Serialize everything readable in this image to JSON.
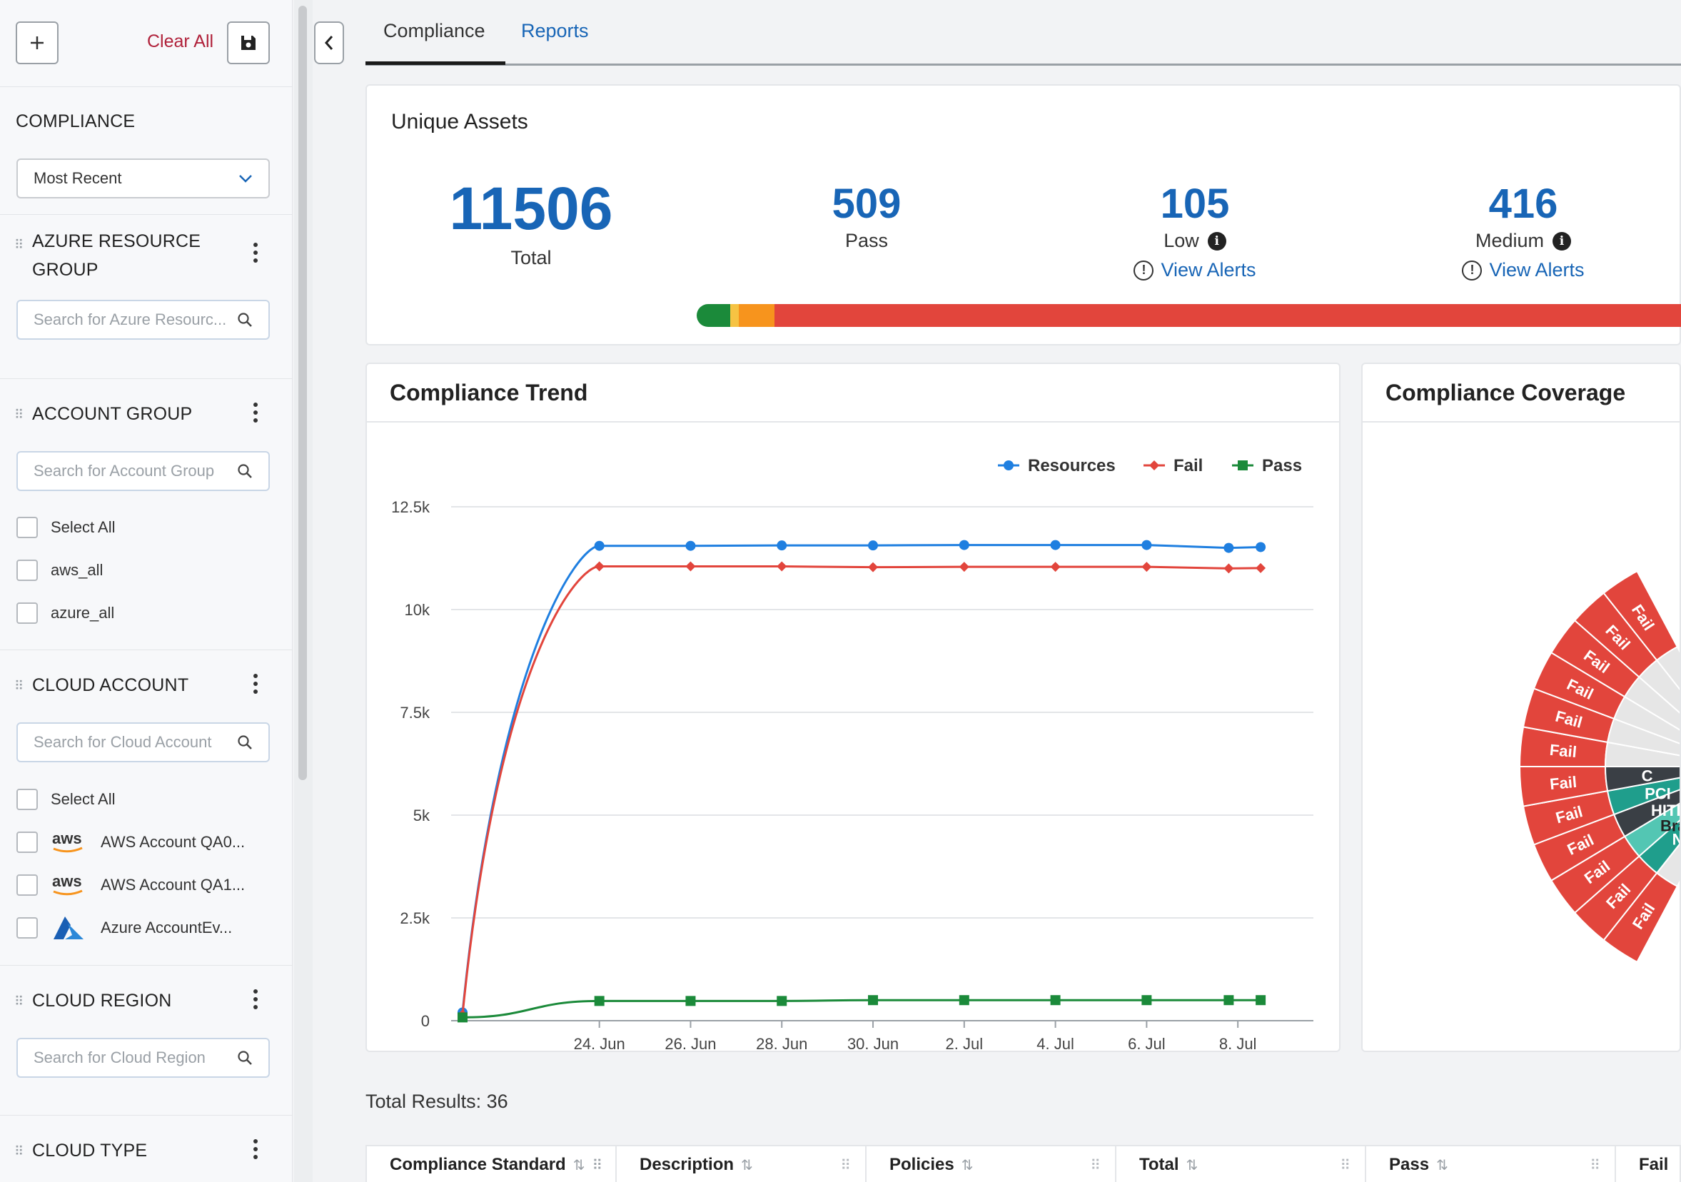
{
  "sidebar": {
    "clear_all": "Clear All",
    "compliance": {
      "title": "COMPLIANCE",
      "selected": "Most Recent"
    },
    "azure_resource_group": {
      "title_line1": "AZURE RESOURCE",
      "title_line2": "GROUP",
      "placeholder": "Search for Azure Resourc..."
    },
    "account_group": {
      "title": "ACCOUNT GROUP",
      "placeholder": "Search for Account Group",
      "items": [
        "Select All",
        "aws_all",
        "azure_all"
      ]
    },
    "cloud_account": {
      "title": "CLOUD ACCOUNT",
      "placeholder": "Search for Cloud Account",
      "select_all": "Select All",
      "items": [
        {
          "icon": "aws-logo-icon",
          "label": "AWS Account QA0..."
        },
        {
          "icon": "aws-logo-icon",
          "label": "AWS Account QA1..."
        },
        {
          "icon": "azure-logo-icon",
          "label": "Azure AccountEv..."
        }
      ]
    },
    "cloud_region": {
      "title": "CLOUD REGION",
      "placeholder": "Search for Cloud Region"
    },
    "cloud_type": {
      "title": "CLOUD TYPE"
    }
  },
  "tabs": [
    "Compliance",
    "Reports"
  ],
  "unique_assets": {
    "title": "Unique Assets",
    "total": {
      "value": "11506",
      "label": "Total"
    },
    "pass": {
      "value": "509",
      "label": "Pass"
    },
    "low": {
      "value": "105",
      "label": "Low",
      "link": "View Alerts"
    },
    "medium": {
      "value": "416",
      "label": "Medium",
      "link": "View Alerts"
    },
    "severity_bar": [
      {
        "name": "pass",
        "color": "#1b8a3a",
        "share": 0.034
      },
      {
        "name": "informational",
        "color": "#f6c343",
        "share": 0.009
      },
      {
        "name": "low",
        "color": "#f7941d",
        "share": 0.036
      },
      {
        "name": "high",
        "color": "#e2453c",
        "share": 0.921
      }
    ]
  },
  "colors": {
    "accent": "#1865b6",
    "fail": "#e2453c",
    "pass": "#1b8a3a",
    "resources": "#1f7fe0"
  },
  "compliance_trend": {
    "title": "Compliance Trend"
  },
  "compliance_coverage": {
    "title": "Compliance Coverage",
    "fail_label": "Fail",
    "inner_labels": [
      "N",
      "Braz",
      "HITR",
      "PCI",
      "C"
    ]
  },
  "chart_data": {
    "type": "line",
    "title": "Compliance Trend",
    "x": [
      "22. Jun",
      "24. Jun",
      "26. Jun",
      "28. Jun",
      "30. Jun",
      "2. Jul",
      "4. Jul",
      "6. Jul",
      "8. Jul",
      "9. Jul"
    ],
    "x_tick_labels": [
      "24. Jun",
      "26. Jun",
      "28. Jun",
      "30. Jun",
      "2. Jul",
      "4. Jul",
      "6. Jul",
      "8. Jul"
    ],
    "x_days": [
      0,
      4,
      6,
      8,
      10,
      12,
      14,
      16,
      17.8,
      18.5
    ],
    "y_tick_labels": [
      "0",
      "2.5k",
      "5k",
      "7.5k",
      "10k",
      "12.5k"
    ],
    "ylim": [
      0,
      12500
    ],
    "legend": "top-right",
    "grid": true,
    "series": [
      {
        "name": "Resources",
        "color": "#1f7fe0",
        "marker": "circle",
        "values": [
          200,
          11550,
          11550,
          11560,
          11560,
          11570,
          11570,
          11570,
          11500,
          11520
        ]
      },
      {
        "name": "Fail",
        "color": "#e2453c",
        "marker": "diamond",
        "values": [
          150,
          11050,
          11050,
          11050,
          11030,
          11040,
          11040,
          11040,
          11000,
          11010
        ]
      },
      {
        "name": "Pass",
        "color": "#1b8a3a",
        "marker": "square",
        "values": [
          80,
          480,
          480,
          480,
          500,
          500,
          500,
          500,
          500,
          500
        ]
      }
    ]
  },
  "table": {
    "total_results": "Total Results: 36",
    "columns": [
      "Compliance Standard",
      "Description",
      "Policies",
      "Total",
      "Pass",
      "Fail"
    ]
  }
}
